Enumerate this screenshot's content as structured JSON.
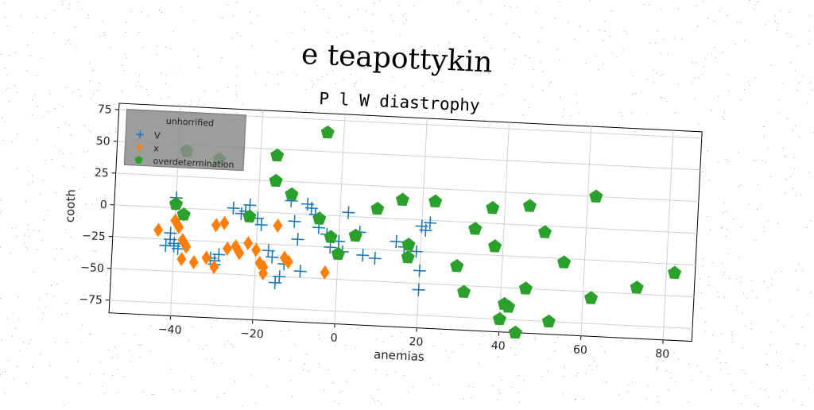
{
  "chart_data": {
    "type": "scatter",
    "title": "e teapottykin",
    "subtitle": "P l W diastrophy",
    "xlabel": "anemias",
    "ylabel": "cooth",
    "xlim": [
      -55,
      87
    ],
    "ylim": [
      -85,
      80
    ],
    "xticks": [
      -40,
      -20,
      0,
      20,
      40,
      60,
      80
    ],
    "yticks": [
      75,
      50,
      25,
      0,
      -25,
      -50,
      -75
    ],
    "grid": true,
    "legend": {
      "title": "unhorrified",
      "placement": "top-left"
    },
    "series": [
      {
        "name": "V",
        "marker": "plus",
        "color": "#1f77b4",
        "points": [
          [
            -40,
            8
          ],
          [
            -40,
            3
          ],
          [
            -38,
            -5
          ],
          [
            -41,
            -20
          ],
          [
            -41,
            -25
          ],
          [
            -42,
            -30
          ],
          [
            -40,
            -30
          ],
          [
            -39,
            -32
          ],
          [
            -40,
            -28
          ],
          [
            -30,
            -40
          ],
          [
            -29,
            -35
          ],
          [
            -31,
            -38
          ],
          [
            -30,
            -43
          ],
          [
            -26,
            2
          ],
          [
            -24,
            -2
          ],
          [
            -23,
            0
          ],
          [
            -22,
            5
          ],
          [
            -20,
            -5
          ],
          [
            -19,
            -10
          ],
          [
            -17,
            -30
          ],
          [
            -16,
            -35
          ],
          [
            -15,
            -55
          ],
          [
            -14,
            -50
          ],
          [
            -13,
            -40
          ],
          [
            -12,
            10
          ],
          [
            -11,
            -6
          ],
          [
            -10,
            -20
          ],
          [
            -9,
            -45
          ],
          [
            -8,
            8
          ],
          [
            -7,
            5
          ],
          [
            -6,
            0
          ],
          [
            -5,
            -10
          ],
          [
            -3,
            -15
          ],
          [
            -2,
            -25
          ],
          [
            0,
            -20
          ],
          [
            1,
            -28
          ],
          [
            2,
            3
          ],
          [
            5,
            -12
          ],
          [
            6,
            -30
          ],
          [
            9,
            -32
          ],
          [
            14,
            -18
          ],
          [
            16,
            -22
          ],
          [
            19,
            -25
          ],
          [
            20,
            -5
          ],
          [
            20,
            -40
          ],
          [
            20,
            -55
          ],
          [
            21,
            -8
          ],
          [
            22,
            -2
          ]
        ]
      },
      {
        "name": "x",
        "marker": "diamond",
        "color": "#ff7f0e",
        "points": [
          [
            -44,
            -18
          ],
          [
            -40,
            -10
          ],
          [
            -39,
            -15
          ],
          [
            -38,
            -25
          ],
          [
            -37,
            -30
          ],
          [
            -38,
            -40
          ],
          [
            -35,
            -42
          ],
          [
            -32,
            -38
          ],
          [
            -30,
            -45
          ],
          [
            -30,
            -12
          ],
          [
            -28,
            -10
          ],
          [
            -27,
            -30
          ],
          [
            -25,
            -28
          ],
          [
            -24,
            -33
          ],
          [
            -22,
            -25
          ],
          [
            -20,
            -30
          ],
          [
            -19,
            -40
          ],
          [
            -18,
            -43
          ],
          [
            -18,
            -48
          ],
          [
            -15,
            -10
          ],
          [
            -13,
            -35
          ],
          [
            -12,
            -38
          ],
          [
            -3,
            -45
          ]
        ]
      },
      {
        "name": "overdetermination",
        "marker": "pentagon",
        "color": "#2ca02c",
        "points": [
          [
            -4,
            65
          ],
          [
            -16,
            45
          ],
          [
            -38,
            45
          ],
          [
            -30,
            40
          ],
          [
            -16,
            25
          ],
          [
            -12,
            15
          ],
          [
            -40,
            3
          ],
          [
            -38,
            -5
          ],
          [
            -22,
            -4
          ],
          [
            -5,
            -3
          ],
          [
            -2,
            -17
          ],
          [
            0,
            -30
          ],
          [
            4,
            -15
          ],
          [
            9,
            7
          ],
          [
            15,
            15
          ],
          [
            17,
            -30
          ],
          [
            17,
            -20
          ],
          [
            23,
            15
          ],
          [
            29,
            -35
          ],
          [
            31,
            -55
          ],
          [
            33,
            -5
          ],
          [
            37,
            12
          ],
          [
            38,
            -18
          ],
          [
            40,
            -75
          ],
          [
            41,
            -63
          ],
          [
            42,
            -65
          ],
          [
            44,
            -85
          ],
          [
            46,
            15
          ],
          [
            46,
            -50
          ],
          [
            50,
            -5
          ],
          [
            52,
            -75
          ],
          [
            55,
            -28
          ],
          [
            62,
            25
          ],
          [
            62,
            -55
          ],
          [
            73,
            -45
          ],
          [
            82,
            -32
          ]
        ]
      }
    ]
  }
}
